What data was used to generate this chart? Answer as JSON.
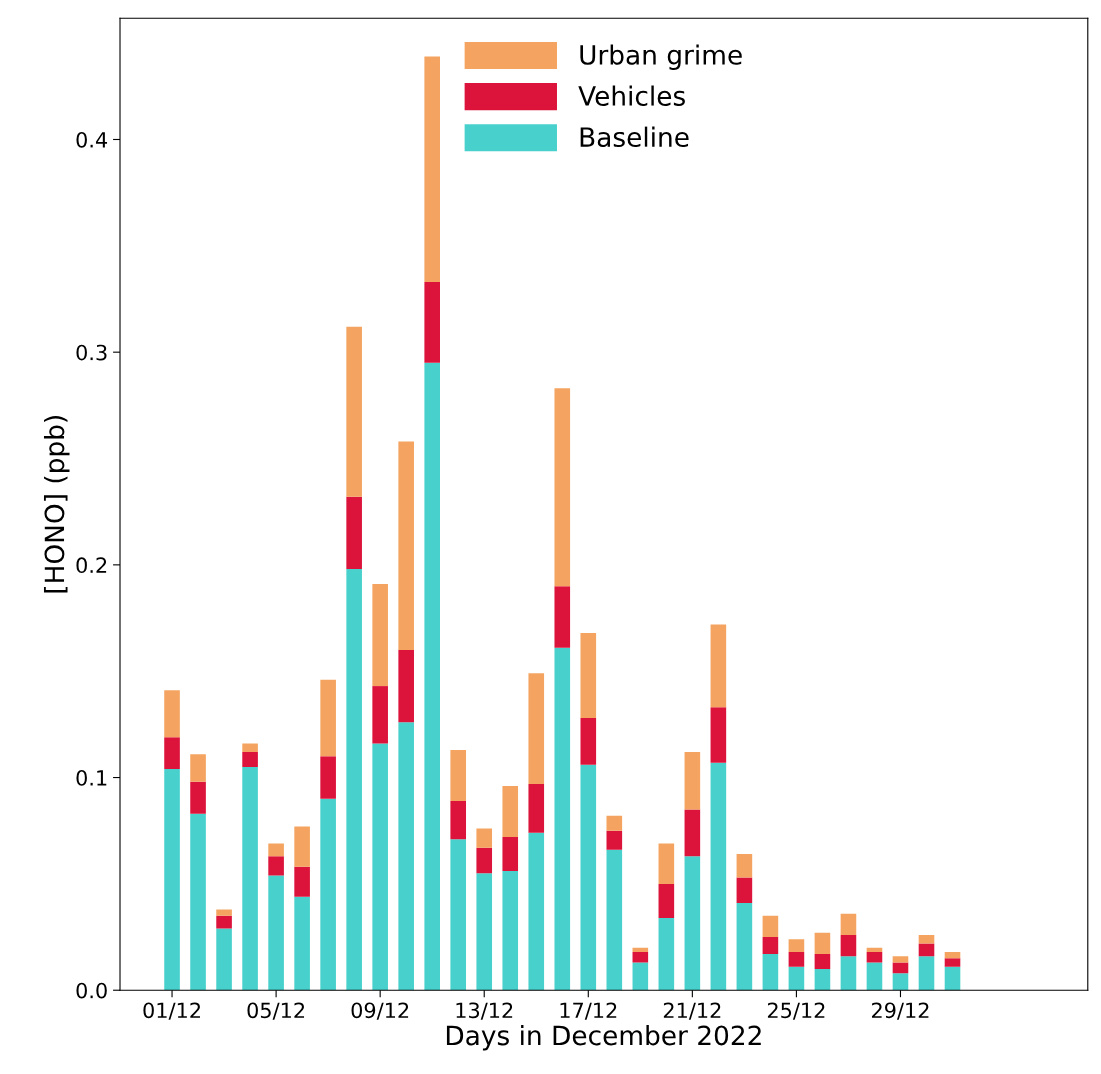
{
  "chart_data": {
    "type": "bar",
    "stacked": true,
    "xlabel": "Days in December 2022",
    "ylabel": "[HONO] (ppb)",
    "categories": [
      "01/12",
      null,
      null,
      null,
      "05/12",
      null,
      null,
      null,
      "09/12",
      null,
      null,
      null,
      "13/12",
      null,
      null,
      null,
      "17/12",
      null,
      null,
      null,
      "21/12",
      null,
      null,
      null,
      "25/12",
      null,
      null,
      null,
      "29/12",
      null,
      null
    ],
    "series": [
      {
        "name": "Baseline",
        "color": "#48d1cc",
        "values": [
          0.104,
          0.083,
          0.029,
          0.105,
          0.054,
          0.044,
          0.09,
          0.198,
          0.116,
          0.126,
          0.295,
          0.071,
          0.055,
          0.056,
          0.074,
          0.161,
          0.106,
          0.066,
          0.013,
          0.034,
          0.063,
          0.107,
          0.041,
          0.017,
          0.011,
          0.01,
          0.016,
          0.013,
          0.008,
          0.016,
          0.011
        ]
      },
      {
        "name": "Vehicles",
        "color": "#dc143c",
        "values": [
          0.015,
          0.015,
          0.006,
          0.007,
          0.009,
          0.014,
          0.02,
          0.034,
          0.027,
          0.034,
          0.038,
          0.018,
          0.012,
          0.016,
          0.023,
          0.029,
          0.022,
          0.009,
          0.005,
          0.016,
          0.022,
          0.026,
          0.012,
          0.008,
          0.007,
          0.007,
          0.01,
          0.005,
          0.005,
          0.006,
          0.004
        ]
      },
      {
        "name": "Urban grime",
        "color": "#f4a460",
        "values": [
          0.022,
          0.013,
          0.003,
          0.004,
          0.006,
          0.019,
          0.036,
          0.08,
          0.048,
          0.098,
          0.106,
          0.024,
          0.009,
          0.024,
          0.052,
          0.093,
          0.04,
          0.007,
          0.002,
          0.019,
          0.027,
          0.039,
          0.011,
          0.01,
          0.006,
          0.01,
          0.01,
          0.002,
          0.003,
          0.004,
          0.003
        ]
      }
    ],
    "ylim": [
      0,
      0.457
    ],
    "yticks": [
      {
        "value": 0,
        "label": "0.0"
      },
      0.1,
      0.2,
      0.3,
      0.4
    ],
    "legend": "upper center",
    "grid": false
  }
}
